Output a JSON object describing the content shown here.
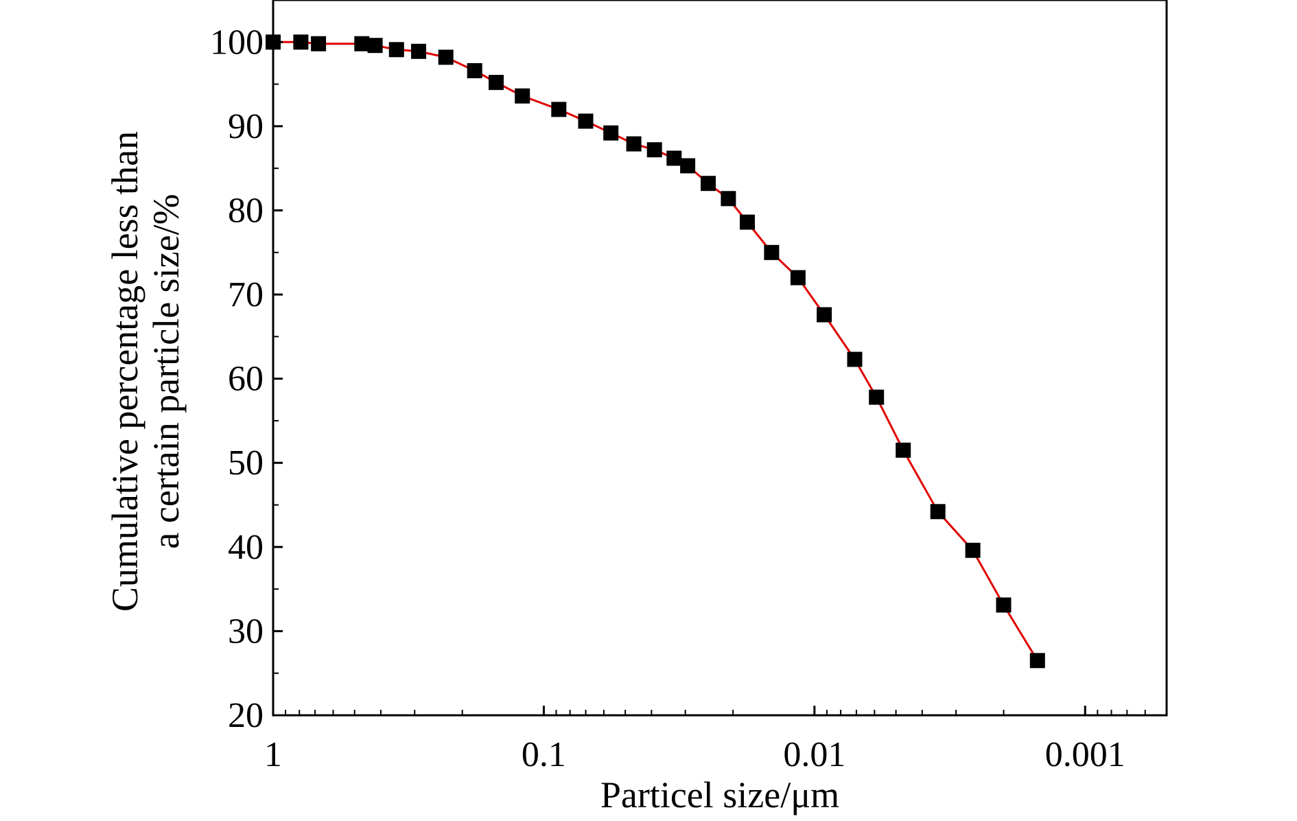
{
  "chart_data": {
    "type": "line",
    "title": "",
    "xlabel": "Particel size/μm",
    "ylabel": [
      "Cumulative percentage less than",
      "a certain particle size/%"
    ],
    "x_scale": "log",
    "x_reversed": true,
    "xlim": [
      1,
      0.0005
    ],
    "ylim": [
      20,
      105
    ],
    "x_ticks": [
      1,
      0.1,
      0.01,
      0.001
    ],
    "x_tick_labels": [
      "1",
      "0.1",
      "0.01",
      "0.001"
    ],
    "y_ticks": [
      20,
      30,
      40,
      50,
      60,
      70,
      80,
      90,
      100
    ],
    "y_tick_labels": [
      "20",
      "30",
      "40",
      "50",
      "60",
      "70",
      "80",
      "90",
      "100"
    ],
    "grid": false,
    "legend": "none",
    "series": [
      {
        "color": "#e00000",
        "marker": "square",
        "marker_color": "#000000",
        "x": [
          1,
          0.79,
          0.68,
          0.47,
          0.42,
          0.35,
          0.29,
          0.23,
          0.18,
          0.15,
          0.12,
          0.088,
          0.07,
          0.0565,
          0.0465,
          0.039,
          0.033,
          0.0294,
          0.0247,
          0.0208,
          0.0177,
          0.0144,
          0.0115,
          0.0092,
          0.0071,
          0.0059,
          0.0047,
          0.0035,
          0.0026,
          0.002,
          0.0015
        ],
        "y": [
          100,
          100,
          99.8,
          99.8,
          99.6,
          99.1,
          98.9,
          98.2,
          96.6,
          95.2,
          93.6,
          92.0,
          90.6,
          89.2,
          87.9,
          87.2,
          86.2,
          85.3,
          83.2,
          81.4,
          78.6,
          75.0,
          72.0,
          67.6,
          62.3,
          57.8,
          51.5,
          44.2,
          39.6,
          33.1,
          26.5
        ]
      }
    ]
  }
}
